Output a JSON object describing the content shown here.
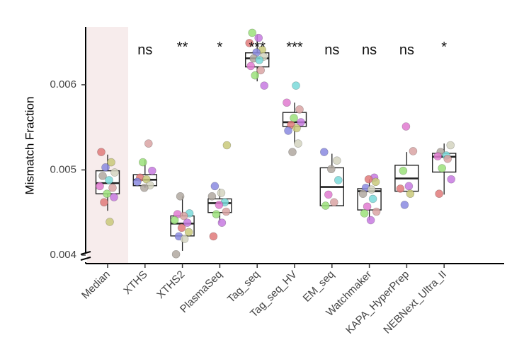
{
  "chart_data": {
    "type": "boxplot",
    "ylabel": "Mismatch Fraction",
    "xlabel": "",
    "ylim": [
      0.0039,
      0.00668
    ],
    "yticks": [
      0.004,
      0.005,
      0.006
    ],
    "ytick_labels": [
      "0.004",
      "0.005",
      "0.006"
    ],
    "grid": false,
    "highlight_category": "Median",
    "highlight_color": "#f7ecec",
    "point_colors": [
      "#e07a7a",
      "#d9a3a3",
      "#b0a8a0",
      "#c9c97a",
      "#9be07a",
      "#7ad9d9",
      "#8a8ae0",
      "#c77ae0",
      "#e07ad0",
      "#d4d4c0"
    ],
    "categories": [
      {
        "name": "Median",
        "significance": "",
        "box": {
          "q1": 0.00472,
          "median": 0.004845,
          "q3": 0.00499,
          "whisker_low": 0.00452,
          "whisker_high": 0.00518
        },
        "points": [
          0.00521,
          0.00509,
          0.00503,
          0.00497,
          0.00493,
          0.00488,
          0.00481,
          0.00479,
          0.00472,
          0.00468,
          0.00462,
          0.00439
        ]
      },
      {
        "name": "XTHS",
        "significance": "ns",
        "box": {
          "q1": 0.004815,
          "median": 0.004885,
          "q3": 0.004945,
          "whisker_low": 0.00479,
          "whisker_high": 0.00512
        },
        "points": [
          0.00531,
          0.00509,
          0.00499,
          0.00491,
          0.00489,
          0.00486,
          0.00482,
          0.00479
        ]
      },
      {
        "name": "XTHS2",
        "significance": "**",
        "box": {
          "q1": 0.004225,
          "median": 0.00437,
          "q3": 0.00446,
          "whisker_low": 0.00405,
          "whisker_high": 0.00469
        },
        "points": [
          0.00469,
          0.00449,
          0.00448,
          0.00446,
          0.00441,
          0.00438,
          0.00432,
          0.00427,
          0.00422,
          0.00419,
          0.00401
        ]
      },
      {
        "name": "PlasmaSeq",
        "significance": "*",
        "box": {
          "q1": 0.0045,
          "median": 0.00461,
          "q3": 0.00466,
          "whisker_low": 0.00438,
          "whisker_high": 0.00478
        },
        "points": [
          0.00529,
          0.00481,
          0.00473,
          0.00469,
          0.00462,
          0.00459,
          0.00451,
          0.00448,
          0.00438,
          0.00422
        ]
      },
      {
        "name": "Tag_seq",
        "significance": "***",
        "box": {
          "q1": 0.00621,
          "median": 0.00631,
          "q3": 0.006375,
          "whisker_low": 0.00604,
          "whisker_high": 0.00659
        },
        "points": [
          0.00661,
          0.00655,
          0.00649,
          0.00641,
          0.00638,
          0.00633,
          0.00631,
          0.00629,
          0.00622,
          0.00617,
          0.00611,
          0.00599
        ]
      },
      {
        "name": "Tag_seq_HV",
        "significance": "***",
        "box": {
          "q1": 0.00551,
          "median": 0.00556,
          "q3": 0.005675,
          "whisker_low": 0.00531,
          "whisker_high": 0.00579
        },
        "points": [
          0.00599,
          0.00579,
          0.00571,
          0.00561,
          0.00556,
          0.00553,
          0.00549,
          0.00546,
          0.00531,
          0.00521
        ]
      },
      {
        "name": "EM_seq",
        "significance": "ns",
        "box": {
          "q1": 0.00458,
          "median": 0.0048,
          "q3": 0.005025,
          "whisker_low": 0.00458,
          "whisker_high": 0.00519
        },
        "points": [
          0.00521,
          0.00511,
          0.00501,
          0.00488,
          0.00471,
          0.00462,
          0.00458
        ]
      },
      {
        "name": "Watchmaker",
        "significance": "ns",
        "box": {
          "q1": 0.00453,
          "median": 0.00475,
          "q3": 0.00478,
          "whisker_low": 0.00441,
          "whisker_high": 0.00489
        },
        "points": [
          0.00491,
          0.00489,
          0.00486,
          0.00479,
          0.00477,
          0.00472,
          0.00466,
          0.00457,
          0.00451,
          0.00449,
          0.00441
        ]
      },
      {
        "name": "KAPA_HyperPrep",
        "significance": "ns",
        "box": {
          "q1": 0.00475,
          "median": 0.0049,
          "q3": 0.005055,
          "whisker_low": 0.00475,
          "whisker_high": 0.00521
        },
        "points": [
          0.00551,
          0.00522,
          0.00499,
          0.00481,
          0.00478,
          0.00472,
          0.00459
        ]
      },
      {
        "name": "NEBNext_Ultra_II",
        "significance": "*",
        "box": {
          "q1": 0.004975,
          "median": 0.005155,
          "q3": 0.005195,
          "whisker_low": 0.00471,
          "whisker_high": 0.00531
        },
        "points": [
          0.00529,
          0.00521,
          0.00517,
          0.00516,
          0.00513,
          0.00502,
          0.00489,
          0.00472
        ]
      }
    ]
  }
}
